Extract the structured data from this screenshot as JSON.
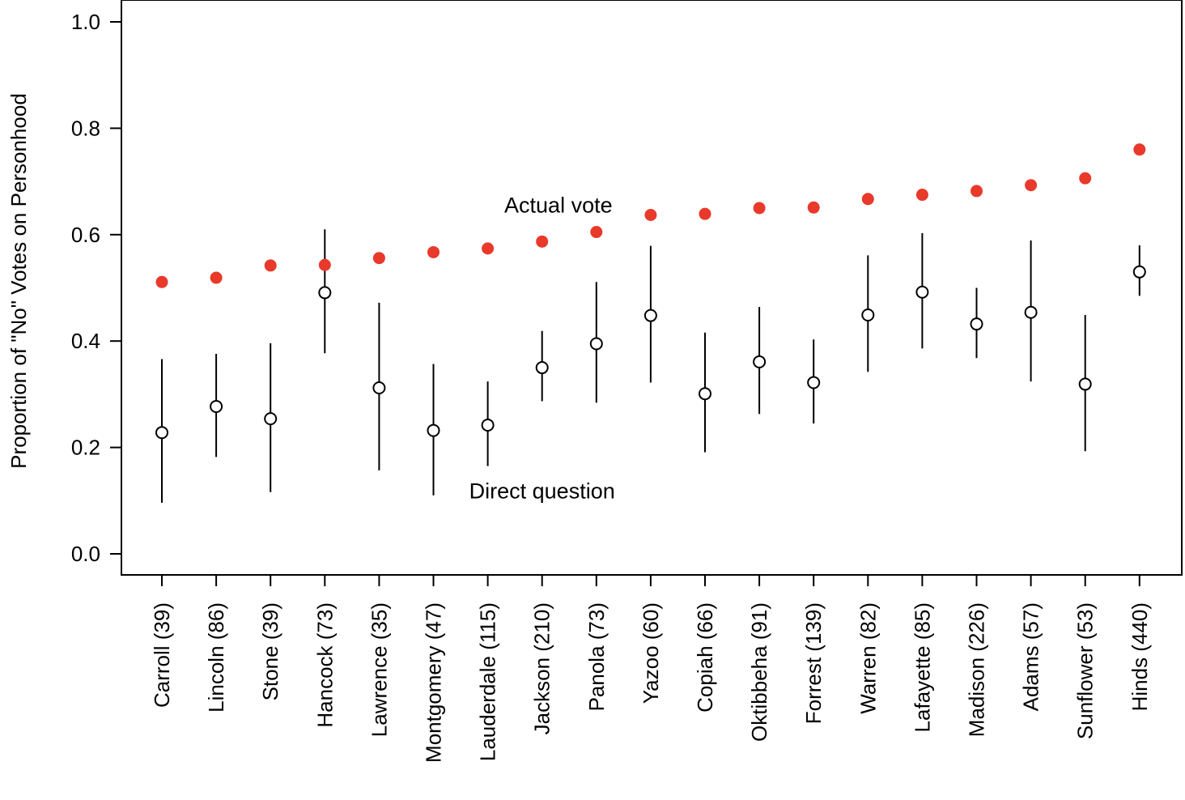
{
  "chart_data": {
    "type": "scatter",
    "ylabel": "Proportion of \"No\" Votes on Personhood",
    "ylim": [
      -0.04,
      1.04
    ],
    "yticks": [
      "0.0",
      "0.2",
      "0.4",
      "0.6",
      "0.8",
      "1.0"
    ],
    "ytick_values": [
      0.0,
      0.2,
      0.4,
      0.6,
      0.8,
      1.0
    ],
    "categories": [
      "Carroll (39)",
      "Lincoln (86)",
      "Stone (39)",
      "Hancock (73)",
      "Lawrence (35)",
      "Montgomery (47)",
      "Lauderdale (115)",
      "Jackson (210)",
      "Panola (73)",
      "Yazoo (60)",
      "Copiah (66)",
      "Oktibbeha (91)",
      "Forrest (139)",
      "Warren (82)",
      "Lafayette (85)",
      "Madison (226)",
      "Adams (57)",
      "Sunflower (53)",
      "Hinds (440)"
    ],
    "series": [
      {
        "name": "Actual vote",
        "color": "#e8392b",
        "marker": "filled-circle",
        "values": [
          0.511,
          0.519,
          0.542,
          0.543,
          0.556,
          0.567,
          0.574,
          0.587,
          0.605,
          0.637,
          0.639,
          0.65,
          0.651,
          0.667,
          0.675,
          0.682,
          0.693,
          0.706,
          0.76
        ]
      },
      {
        "name": "Direct question",
        "color": "#000000",
        "marker": "open-circle",
        "values": [
          0.228,
          0.277,
          0.254,
          0.491,
          0.312,
          0.232,
          0.242,
          0.35,
          0.395,
          0.448,
          0.301,
          0.361,
          0.322,
          0.449,
          0.492,
          0.432,
          0.454,
          0.319,
          0.53
        ],
        "lower": [
          0.096,
          0.182,
          0.116,
          0.377,
          0.157,
          0.11,
          0.165,
          0.287,
          0.284,
          0.322,
          0.191,
          0.263,
          0.245,
          0.342,
          0.386,
          0.368,
          0.324,
          0.193,
          0.485
        ],
        "upper": [
          0.366,
          0.376,
          0.396,
          0.61,
          0.472,
          0.357,
          0.324,
          0.419,
          0.511,
          0.579,
          0.416,
          0.464,
          0.403,
          0.561,
          0.603,
          0.5,
          0.589,
          0.449,
          0.58
        ]
      }
    ],
    "annotations": [
      {
        "text": "Actual vote",
        "x_index": 7.3,
        "y": 0.655
      },
      {
        "text": "Direct question",
        "x_index": 7.0,
        "y": 0.118
      }
    ],
    "grid": false,
    "legend": "none"
  }
}
